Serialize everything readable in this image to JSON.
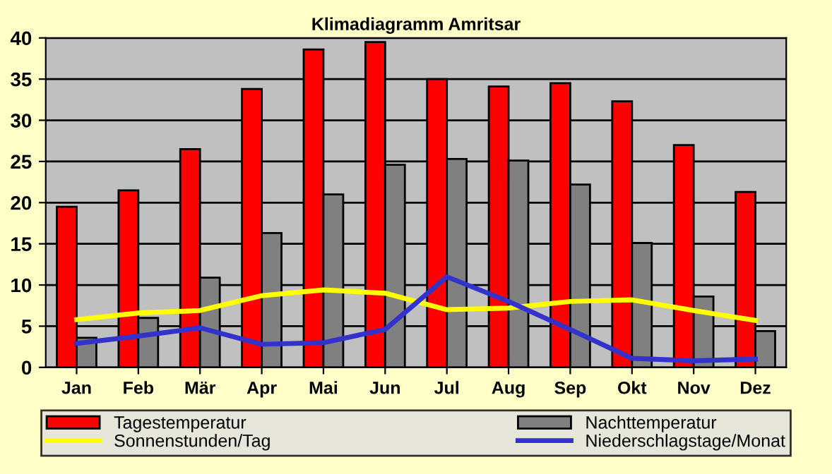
{
  "chart_data": {
    "type": "bar",
    "title": "Klimadiagramm Amritsar",
    "categories": [
      "Jan",
      "Feb",
      "Mär",
      "Apr",
      "Mai",
      "Jun",
      "Jul",
      "Aug",
      "Sep",
      "Okt",
      "Nov",
      "Dez"
    ],
    "series": [
      {
        "name": "Tagestemperatur",
        "color": "#ff0000",
        "values": [
          19.5,
          21.5,
          26.5,
          33.8,
          38.6,
          39.5,
          35.0,
          34.1,
          34.5,
          32.3,
          27.0,
          21.3
        ]
      },
      {
        "name": "Nachttemperatur",
        "color": "#808080",
        "values": [
          3.6,
          6.0,
          10.9,
          16.3,
          21.0,
          24.6,
          25.3,
          25.1,
          22.2,
          15.1,
          8.6,
          4.4
        ]
      },
      {
        "name": "Sonnenstunden/Tag",
        "type": "line",
        "color": "#ffff00",
        "values": [
          5.8,
          6.6,
          6.9,
          8.7,
          9.4,
          9.0,
          7.0,
          7.2,
          8.0,
          8.2,
          6.9,
          5.7
        ]
      },
      {
        "name": "Niederschlagstage/Monat",
        "type": "line",
        "color": "#3333cc",
        "values": [
          2.9,
          3.8,
          4.8,
          2.8,
          3.0,
          4.6,
          11.0,
          8.0,
          4.6,
          1.1,
          0.8,
          1.0
        ]
      }
    ],
    "ylim": [
      0,
      40
    ],
    "yticks": [
      0,
      5,
      10,
      15,
      20,
      25,
      30,
      35,
      40
    ],
    "grid": "y",
    "legend": "bottom",
    "marker": "none",
    "line_style": "solid"
  }
}
